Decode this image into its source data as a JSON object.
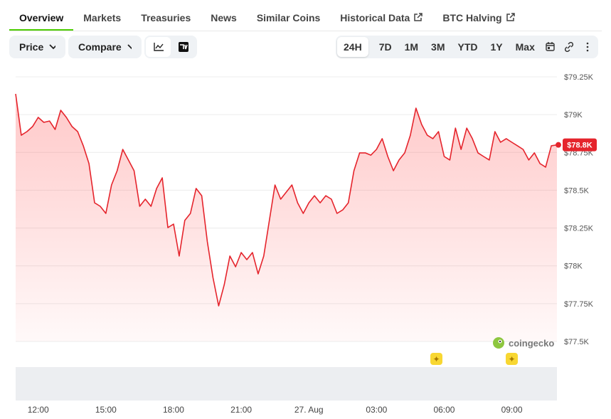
{
  "tabs": [
    "Overview",
    "Markets",
    "Treasuries",
    "News",
    "Similar Coins",
    "Historical Data",
    "BTC Halving"
  ],
  "external_tabs": [
    5,
    6
  ],
  "active_tab": 0,
  "dropdowns": [
    "Price",
    "Compare"
  ],
  "ranges": [
    "24H",
    "7D",
    "1M",
    "3M",
    "YTD",
    "1Y",
    "Max"
  ],
  "active_range": 0,
  "watermark": "coingecko",
  "chart_data": {
    "type": "line",
    "color": "#e5242c",
    "categories": [
      null,
      null,
      null,
      null,
      "12:00",
      null,
      null,
      null,
      null,
      null,
      null,
      null,
      null,
      null,
      null,
      null,
      "15:00",
      null,
      null,
      null,
      null,
      null,
      null,
      null,
      null,
      null,
      null,
      null,
      "18:00",
      null,
      null,
      null,
      null,
      null,
      null,
      null,
      null,
      null,
      null,
      null,
      "21:00",
      null,
      null,
      null,
      null,
      null,
      null,
      null,
      null,
      null,
      null,
      null,
      "27. Aug",
      null,
      null,
      null,
      null,
      null,
      null,
      null,
      null,
      null,
      null,
      null,
      "03:00",
      null,
      null,
      null,
      null,
      null,
      null,
      null,
      null,
      null,
      null,
      null,
      "06:00",
      null,
      null,
      null,
      null,
      null,
      null,
      null,
      null,
      null,
      null,
      null,
      "09:00",
      null,
      null,
      null,
      null,
      null,
      null,
      null,
      null
    ],
    "values": [
      79137,
      78864,
      78888,
      78921,
      78982,
      78949,
      78958,
      78902,
      79029,
      78982,
      78921,
      78888,
      78794,
      78676,
      78417,
      78394,
      78347,
      78535,
      78629,
      78770,
      78700,
      78629,
      78394,
      78441,
      78394,
      78512,
      78582,
      78253,
      78276,
      78065,
      78300,
      78347,
      78512,
      78464,
      78159,
      77923,
      77735,
      77876,
      78065,
      77994,
      78088,
      78041,
      78088,
      77947,
      78065,
      78300,
      78535,
      78441,
      78488,
      78535,
      78417,
      78347,
      78417,
      78464,
      78417,
      78464,
      78441,
      78347,
      78370,
      78417,
      78629,
      78747,
      78747,
      78732,
      78770,
      78841,
      78723,
      78629,
      78700,
      78747,
      78864,
      79043,
      78935,
      78864,
      78841,
      78888,
      78723,
      78700,
      78911,
      78770,
      78911,
      78841,
      78747,
      78723,
      78700,
      78888,
      78817,
      78841,
      78817,
      78794,
      78770,
      78700,
      78747,
      78676,
      78653,
      78794,
      78800
    ],
    "last_price": {
      "value": 78800,
      "label": "$78.8K"
    },
    "ylim": [
      77500,
      79250
    ],
    "yticks": [
      {
        "value": 77500,
        "label": "$77.5K"
      },
      {
        "value": 77750,
        "label": "$77.75K"
      },
      {
        "value": 78000,
        "label": "$78K"
      },
      {
        "value": 78250,
        "label": "$78.25K"
      },
      {
        "value": 78500,
        "label": "$78.5K"
      },
      {
        "value": 78750,
        "label": "$78.75K"
      },
      {
        "value": 79000,
        "label": "$79K"
      },
      {
        "value": 79250,
        "label": "$79.25K"
      }
    ],
    "grid": true
  }
}
